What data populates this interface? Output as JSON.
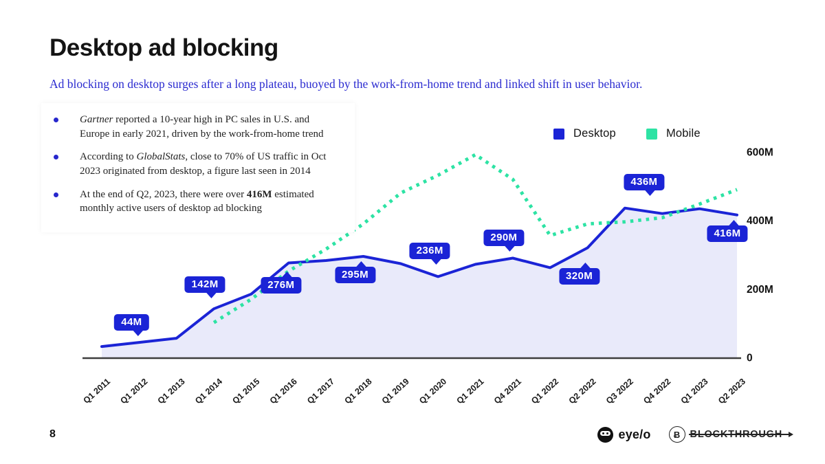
{
  "slide": {
    "title": "Desktop ad blocking",
    "subtitle": "Ad blocking on desktop surges after a long plateau, buoyed by the work-from-home trend and linked shift in user behavior.",
    "page_number": "8",
    "bullets": [
      {
        "parts": [
          {
            "t": "Gartner",
            "style": "italic"
          },
          {
            "t": " reported a 10-year high in PC sales in U.S. and Europe in early 2021, driven by the work-from-home trend"
          }
        ]
      },
      {
        "parts": [
          {
            "t": "According to "
          },
          {
            "t": "GlobalStats",
            "style": "italic"
          },
          {
            "t": ", close to 70% of US traffic in Oct 2023 originated from desktop, a figure last seen in 2014"
          }
        ]
      },
      {
        "parts": [
          {
            "t": "At the end of Q2, 2023, there were over "
          },
          {
            "t": "416M",
            "style": "bold"
          },
          {
            "t": " estimated monthly active users of desktop ad blocking"
          }
        ]
      }
    ],
    "footer": {
      "eyeo_label": "eye/o",
      "blockthrough_icon_glyph": "Ƀ",
      "blockthrough_label": "BLOCKTHROUGH"
    }
  },
  "legend": [
    {
      "label": "Desktop",
      "color": "#1b24d6"
    },
    {
      "label": "Mobile",
      "color": "#2de3a4"
    }
  ],
  "chart_data": {
    "type": "line",
    "title": "",
    "xlabel": "",
    "ylabel": "",
    "ylim": [
      0,
      620
    ],
    "grid": false,
    "legend_position": "top-right",
    "categories": [
      "Q1 2011",
      "Q1 2012",
      "Q1 2013",
      "Q1 2014",
      "Q1 2015",
      "Q1 2016",
      "Q1 2017",
      "Q1 2018",
      "Q1 2019",
      "Q1 2020",
      "Q1 2021",
      "Q4 2021",
      "Q1 2022",
      "Q2 2022",
      "Q3 2022",
      "Q4 2022",
      "Q1 2023",
      "Q2 2023"
    ],
    "series": [
      {
        "name": "Desktop",
        "color": "#1b24d6",
        "style": "solid",
        "area_fill": "#e9eafa",
        "values": [
          32,
          44,
          56,
          142,
          185,
          276,
          283,
          295,
          274,
          236,
          272,
          290,
          262,
          320,
          436,
          420,
          434,
          416
        ]
      },
      {
        "name": "Mobile",
        "color": "#2de3a4",
        "style": "dotted",
        "area_fill": null,
        "values": [
          null,
          null,
          null,
          102,
          170,
          252,
          316,
          390,
          480,
          532,
          592,
          520,
          356,
          390,
          396,
          408,
          448,
          490
        ]
      }
    ],
    "point_labels": [
      {
        "index": 1,
        "text": "44M"
      },
      {
        "index": 3,
        "text": "142M"
      },
      {
        "index": 5,
        "text": "276M"
      },
      {
        "index": 7,
        "text": "295M"
      },
      {
        "index": 9,
        "text": "236M"
      },
      {
        "index": 11,
        "text": "290M"
      },
      {
        "index": 13,
        "text": "320M"
      },
      {
        "index": 14,
        "text": "436M"
      },
      {
        "index": 17,
        "text": "416M"
      }
    ],
    "y_ticks": [
      {
        "value": 600,
        "label": "600M"
      },
      {
        "value": 400,
        "label": "400M"
      },
      {
        "value": 200,
        "label": "200M"
      },
      {
        "value": 0,
        "label": "0"
      }
    ]
  },
  "colors": {
    "accent_blue": "#1b24d6",
    "accent_green": "#2de3a4",
    "subtitle_blue": "#2b2bd0",
    "area_fill": "#e9eafa",
    "axis_line": "#3d3d3d"
  }
}
